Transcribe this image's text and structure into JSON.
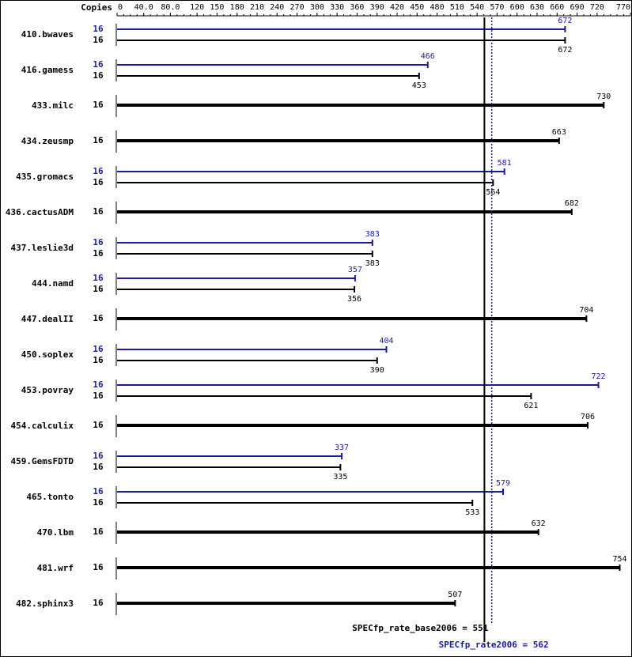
{
  "chart_data": {
    "type": "bar",
    "orientation": "horizontal",
    "copies_header": "Copies",
    "categories": [
      "410.bwaves",
      "416.gamess",
      "433.milc",
      "434.zeusmp",
      "435.gromacs",
      "436.cactusADM",
      "437.leslie3d",
      "444.namd",
      "447.dealII",
      "450.soplex",
      "453.povray",
      "454.calculix",
      "459.GemsFDTD",
      "465.tonto",
      "470.lbm",
      "481.wrf",
      "482.sphinx3"
    ],
    "series": [
      {
        "color": "#1a1aa0",
        "copies": [
          16,
          16,
          null,
          null,
          16,
          null,
          16,
          16,
          null,
          16,
          16,
          null,
          16,
          16,
          null,
          null,
          null
        ],
        "values": [
          672,
          466,
          null,
          null,
          581,
          null,
          383,
          357,
          null,
          404,
          722,
          null,
          337,
          579,
          null,
          null,
          null
        ]
      },
      {
        "color": "#000000",
        "copies": [
          16,
          16,
          16,
          16,
          16,
          16,
          16,
          16,
          16,
          16,
          16,
          16,
          16,
          16,
          16,
          16,
          16
        ],
        "values": [
          672,
          453,
          730,
          663,
          564,
          682,
          383,
          356,
          704,
          390,
          621,
          706,
          335,
          533,
          632,
          754,
          507
        ]
      }
    ],
    "xlim": [
      0,
      770
    ],
    "xticks": [
      0,
      {
        "value": 40,
        "label": "40.0"
      },
      {
        "value": 80,
        "label": "80.0"
      },
      120,
      150,
      180,
      210,
      240,
      270,
      300,
      330,
      360,
      390,
      420,
      450,
      480,
      510,
      540,
      570,
      600,
      630,
      660,
      690,
      720,
      770
    ],
    "reference_lines": [
      {
        "label": "SPECfp_rate_base2006 = 551",
        "value": 551,
        "color": "#000000",
        "style": "solid"
      },
      {
        "label": "SPECfp_rate2006 = 562",
        "value": 562,
        "color": "#1a1aa0",
        "style": "dotted"
      }
    ]
  }
}
